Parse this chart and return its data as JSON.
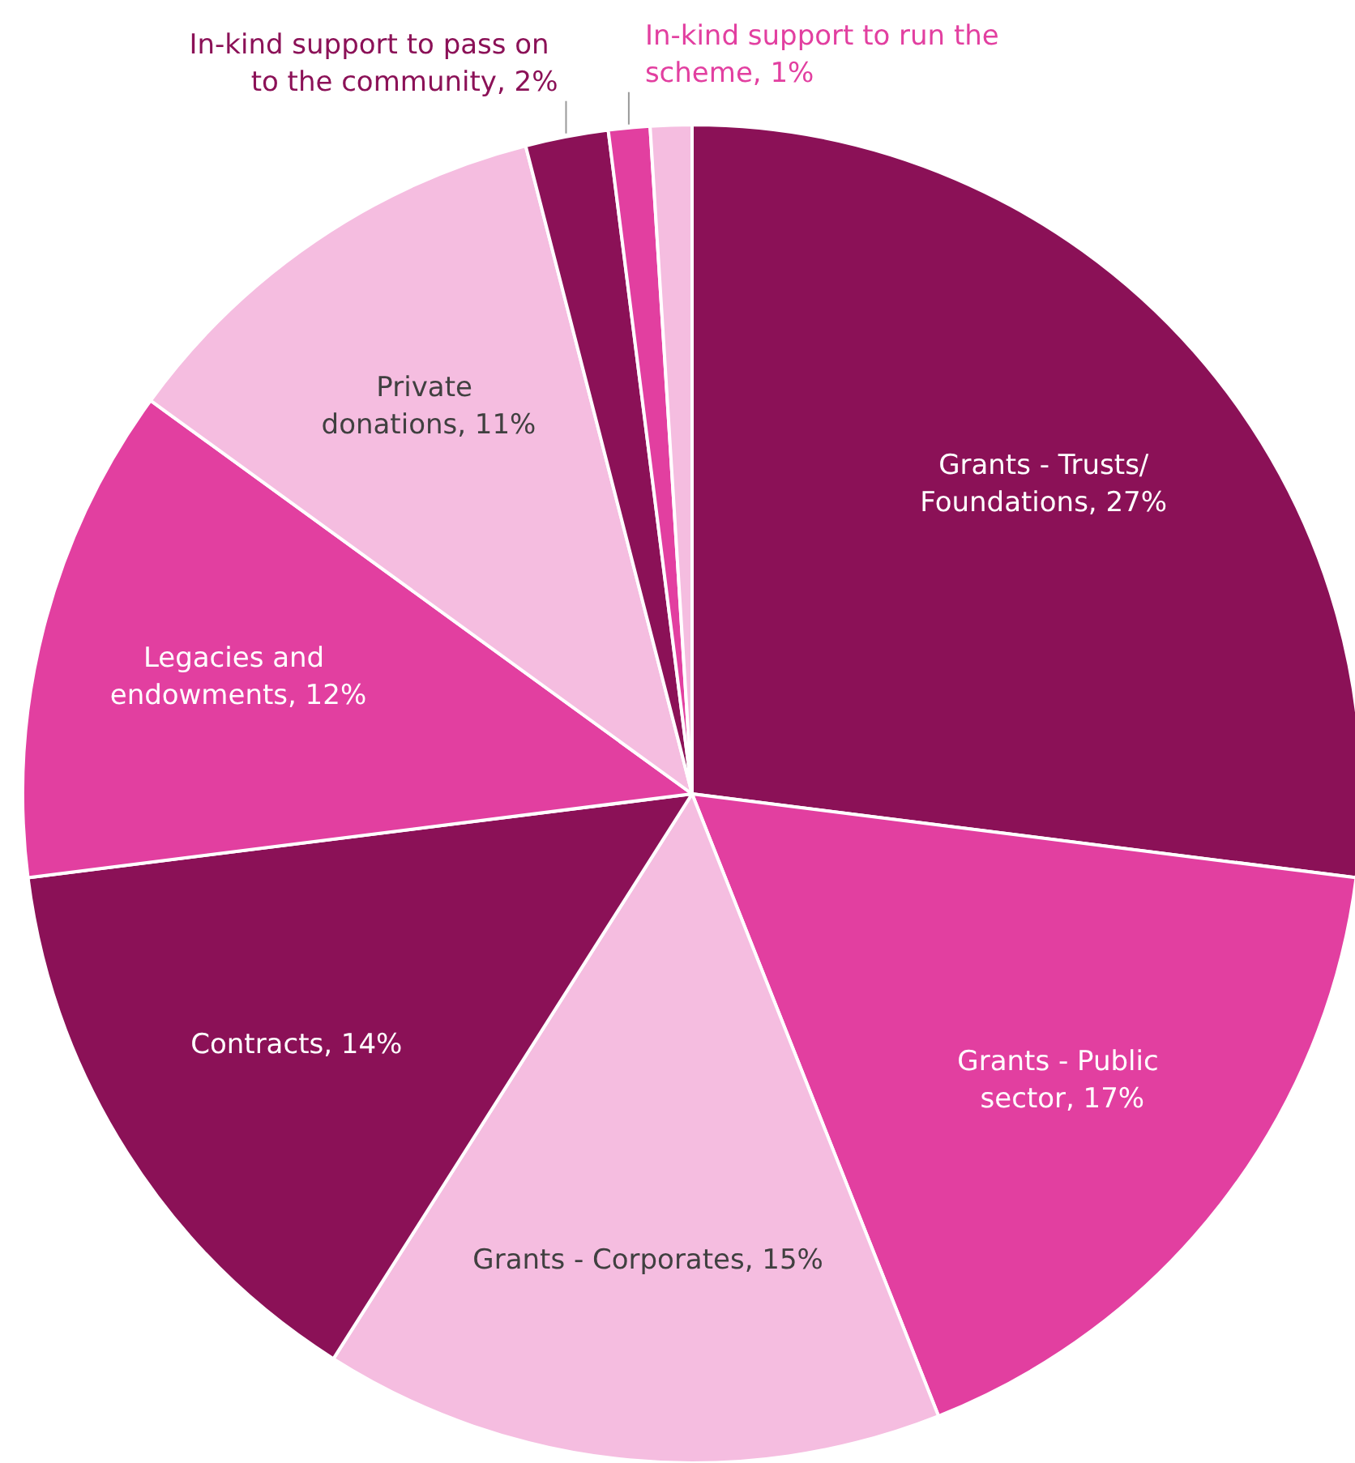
{
  "chart_data": {
    "type": "pie",
    "categories": [
      "Grants - Trusts/Foundations",
      "Grants - Public sector",
      "Grants - Corporates",
      "Contracts",
      "Legacies and endowments",
      "Private donations",
      "In-kind support to pass on to the community",
      "In-kind support to run the scheme",
      null
    ],
    "values": [
      27,
      17,
      15,
      14,
      12,
      11,
      2,
      1,
      1
    ],
    "value_labels": [
      "27%",
      "17%",
      "15%",
      "14%",
      "12%",
      "11%",
      "2%",
      "1%",
      null
    ],
    "colors": [
      "#8b1157",
      "#e23fa0",
      "#f5bde0",
      "#8b1157",
      "#e23fa0",
      "#f5bde0",
      "#8b1157",
      "#e23fa0",
      "#f5bde0"
    ],
    "legend": false
  }
}
